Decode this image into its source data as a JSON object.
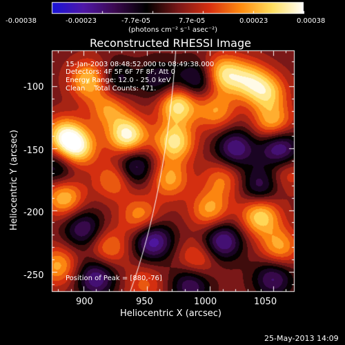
{
  "colorbar": {
    "tick_labels": [
      "-0.00038",
      "-0.00023",
      "-7.7e-05",
      "7.7e-05",
      "0.00023",
      "0.00038"
    ],
    "units": "(photons cm⁻² s⁻¹ asec⁻²)",
    "colors": [
      "#1a14d8",
      "#5018a8",
      "#3c0a50",
      "#000000",
      "#7a1818",
      "#d83010",
      "#ff8c10",
      "#ffe060",
      "#ffffff"
    ]
  },
  "title": "Reconstructed RHESSI Image",
  "info": {
    "line1": "15-Jan-2003 08:48:52.000 to 08:49:38.000",
    "line2": "Detectors: 4F 5F 6F 7F 8F, Att 0",
    "line3": "Energy Range: 12.0 - 25.0 keV",
    "line4": "Clean    Total Counts: 471.",
    "peak": "Position of Peak = [880,-76]"
  },
  "axes": {
    "xlabel": "Heliocentric X (arcsec)",
    "ylabel": "Heliocentric Y (arcsec)",
    "x_ticks": [
      "900",
      "950",
      "1000",
      "1050"
    ],
    "y_ticks": [
      "-100",
      "-150",
      "-200",
      "-250"
    ]
  },
  "timestamp": "25-May-2013 14:09",
  "chart_data": {
    "type": "heatmap",
    "title": "Reconstructed RHESSI Image",
    "xlabel": "Heliocentric X (arcsec)",
    "ylabel": "Heliocentric Y (arcsec)",
    "xlim": [
      875,
      1067
    ],
    "ylim": [
      -266,
      -71
    ],
    "x_tick_values": [
      900,
      950,
      1000,
      1050
    ],
    "y_tick_values": [
      -100,
      -150,
      -200,
      -250
    ],
    "colorbar_range": [
      -0.00038,
      0.00038
    ],
    "peak_position": [
      880,
      -76
    ],
    "sources": [
      {
        "x": 905,
        "y": -95,
        "v": 0.75
      },
      {
        "x": 935,
        "y": -140,
        "v": 1.0
      },
      {
        "x": 920,
        "y": -118,
        "v": 0.55
      },
      {
        "x": 885,
        "y": -140,
        "v": 0.8
      },
      {
        "x": 895,
        "y": -150,
        "v": 0.85
      },
      {
        "x": 975,
        "y": -115,
        "v": 0.9
      },
      {
        "x": 972,
        "y": -145,
        "v": 0.85
      },
      {
        "x": 968,
        "y": -175,
        "v": 0.6
      },
      {
        "x": 1010,
        "y": -90,
        "v": 0.8
      },
      {
        "x": 1030,
        "y": -95,
        "v": 0.65
      },
      {
        "x": 1045,
        "y": -105,
        "v": 0.7
      },
      {
        "x": 1050,
        "y": -130,
        "v": 0.65
      },
      {
        "x": 1005,
        "y": -120,
        "v": 0.55
      },
      {
        "x": 925,
        "y": -175,
        "v": 0.55
      },
      {
        "x": 945,
        "y": -205,
        "v": 0.55
      },
      {
        "x": 1000,
        "y": -200,
        "v": 0.6
      },
      {
        "x": 1040,
        "y": -205,
        "v": 0.8
      },
      {
        "x": 1010,
        "y": -175,
        "v": 0.45
      },
      {
        "x": 1055,
        "y": -230,
        "v": 0.6
      },
      {
        "x": 920,
        "y": -230,
        "v": 0.5
      },
      {
        "x": 880,
        "y": -245,
        "v": 0.6
      },
      {
        "x": 990,
        "y": -240,
        "v": 0.45
      },
      {
        "x": 1060,
        "y": -170,
        "v": 0.35
      },
      {
        "x": 948,
        "y": -260,
        "v": 0.35
      },
      {
        "x": 885,
        "y": -190,
        "v": 0.7
      },
      {
        "x": 1055,
        "y": -150,
        "v": -0.8
      },
      {
        "x": 1020,
        "y": -150,
        "v": -0.7
      },
      {
        "x": 1010,
        "y": -225,
        "v": -0.75
      },
      {
        "x": 955,
        "y": -225,
        "v": -0.8
      },
      {
        "x": 900,
        "y": -215,
        "v": -0.6
      },
      {
        "x": 910,
        "y": -255,
        "v": -0.7
      },
      {
        "x": 985,
        "y": -260,
        "v": -0.6
      },
      {
        "x": 1050,
        "y": -255,
        "v": -0.6
      },
      {
        "x": 940,
        "y": -165,
        "v": -0.65
      },
      {
        "x": 990,
        "y": -95,
        "v": -0.6
      },
      {
        "x": 1040,
        "y": -180,
        "v": -0.55
      },
      {
        "x": 925,
        "y": -95,
        "v": -0.45
      },
      {
        "x": 880,
        "y": -165,
        "v": -0.5
      },
      {
        "x": 960,
        "y": -95,
        "v": -0.45
      }
    ]
  }
}
